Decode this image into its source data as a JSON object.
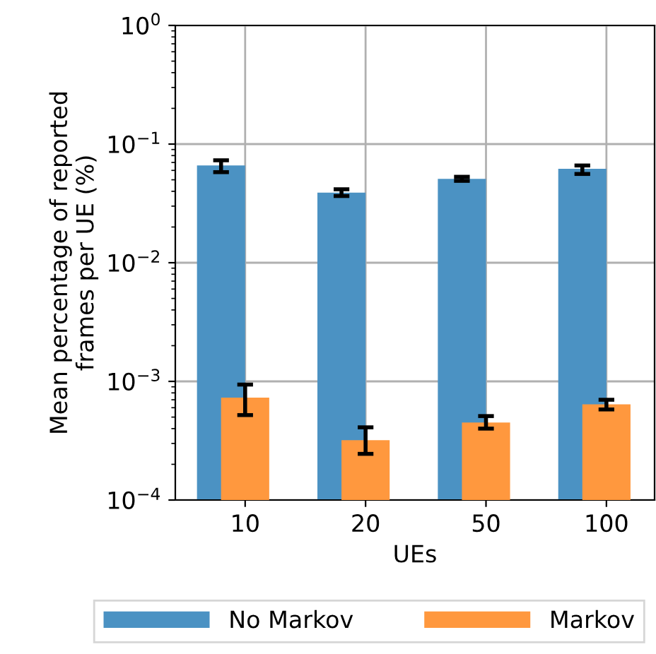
{
  "chart_data": {
    "type": "bar",
    "xlabel": "UEs",
    "ylabel": "Mean percentage of reported\nframes per UE (%)",
    "categories": [
      "10",
      "20",
      "50",
      "100"
    ],
    "series": [
      {
        "name": "No Markov",
        "color": "#4b92c3",
        "values": [
          0.066,
          0.039,
          0.051,
          0.062
        ],
        "errors": [
          [
            0.058,
            0.073
          ],
          [
            0.0365,
            0.0416
          ],
          [
            0.049,
            0.053
          ],
          [
            0.056,
            0.066
          ]
        ]
      },
      {
        "name": "Markov",
        "color": "#ff983e",
        "values": [
          0.00073,
          0.00032,
          0.00045,
          0.00064
        ],
        "errors": [
          [
            0.00052,
            0.00094
          ],
          [
            0.000245,
            0.00041
          ],
          [
            0.0004,
            0.00051
          ],
          [
            0.00058,
            0.0007
          ]
        ]
      }
    ],
    "log": "y",
    "ylim": [
      0.0001,
      1
    ],
    "yticks": [
      {
        "value": 0.0001,
        "label": "10$^{−4}$"
      },
      {
        "value": 0.001,
        "label": "10$^{−3}$"
      },
      {
        "value": 0.01,
        "label": "10$^{−2}$"
      },
      {
        "value": 0.1,
        "label": "10$^{−1}$"
      },
      {
        "value": 1,
        "label": "10$^{0}$"
      }
    ],
    "grid": true,
    "legend": "bottom"
  }
}
